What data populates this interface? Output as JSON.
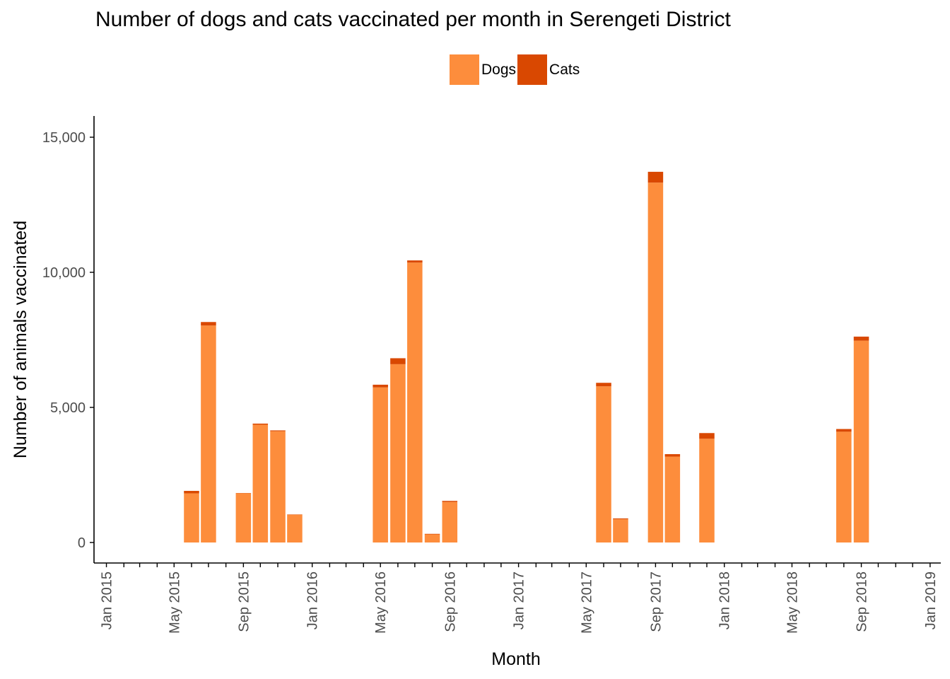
{
  "chart_data": {
    "type": "bar",
    "stacked": true,
    "title": "Number of dogs and cats vaccinated per month in Serengeti District",
    "xlabel": "Month",
    "ylabel": "Number of animals vaccinated",
    "ylim": [
      0,
      15600
    ],
    "xlim": [
      "2014-12-10",
      "2019-01-20"
    ],
    "grid": false,
    "legend_position": "top",
    "legend": [
      {
        "name": "Dogs",
        "color": "#FD8D3C"
      },
      {
        "name": "Cats",
        "color": "#D94801"
      }
    ],
    "y_ticks": [
      {
        "value": 0,
        "label": "0"
      },
      {
        "value": 5000,
        "label": "5,000"
      },
      {
        "value": 10000,
        "label": "10,000"
      },
      {
        "value": 15000,
        "label": "15,000"
      }
    ],
    "x_ticks": [
      {
        "date": "2015-01-01",
        "label": "Jan 2015"
      },
      {
        "date": "2015-05-01",
        "label": "May 2015"
      },
      {
        "date": "2015-09-01",
        "label": "Sep 2015"
      },
      {
        "date": "2016-01-01",
        "label": "Jan 2016"
      },
      {
        "date": "2016-05-01",
        "label": "May 2016"
      },
      {
        "date": "2016-09-01",
        "label": "Sep 2016"
      },
      {
        "date": "2017-01-01",
        "label": "Jan 2017"
      },
      {
        "date": "2017-05-01",
        "label": "May 2017"
      },
      {
        "date": "2017-09-01",
        "label": "Sep 2017"
      },
      {
        "date": "2018-01-01",
        "label": "Jan 2018"
      },
      {
        "date": "2018-05-01",
        "label": "May 2018"
      },
      {
        "date": "2018-09-01",
        "label": "Sep 2018"
      },
      {
        "date": "2019-01-01",
        "label": "Jan 2019"
      }
    ],
    "x": [
      "2015-06",
      "2015-07",
      "2015-09",
      "2015-10",
      "2015-11",
      "2015-12",
      "2016-05",
      "2016-06",
      "2016-07",
      "2016-08",
      "2016-09",
      "2017-06",
      "2017-07",
      "2017-09",
      "2017-10",
      "2017-12",
      "2018-08",
      "2018-09"
    ],
    "series": [
      {
        "name": "Dogs",
        "color": "#FD8D3C",
        "values": [
          1820,
          8030,
          1820,
          4360,
          4120,
          1030,
          5740,
          6600,
          10360,
          300,
          1500,
          5780,
          860,
          13320,
          3180,
          3840,
          4100,
          7470
        ]
      },
      {
        "name": "Cats",
        "color": "#D94801",
        "values": [
          90,
          130,
          10,
          40,
          30,
          10,
          100,
          220,
          80,
          20,
          40,
          130,
          30,
          400,
          90,
          210,
          100,
          150
        ]
      }
    ]
  }
}
